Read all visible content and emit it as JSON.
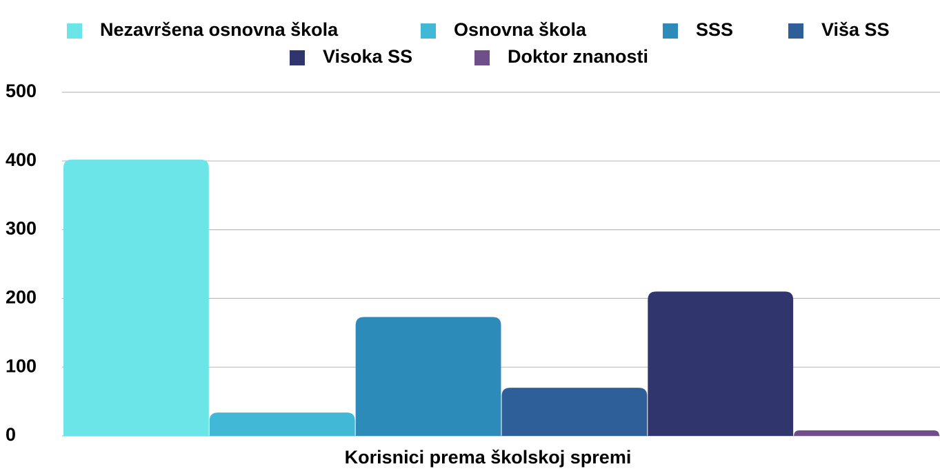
{
  "chart_data": {
    "type": "bar",
    "categories": [
      "Korisnici prema školskoj spremi"
    ],
    "series": [
      {
        "name": "Nezavršena osnovna škola",
        "color": "#6ce5e8",
        "values": [
          402
        ]
      },
      {
        "name": "Osnovna škola",
        "color": "#41b8d5",
        "values": [
          34
        ]
      },
      {
        "name": "SSS",
        "color": "#2d8bba",
        "values": [
          173
        ]
      },
      {
        "name": "Viša SS",
        "color": "#2f5f98",
        "values": [
          70
        ]
      },
      {
        "name": "Visoka SS",
        "color": "#31356e",
        "values": [
          210
        ]
      },
      {
        "name": "Doktor znanosti",
        "color": "#6f4f8a",
        "values": [
          8
        ]
      }
    ],
    "ylim": [
      0,
      500
    ],
    "yticks": [
      0,
      100,
      200,
      300,
      400,
      500
    ],
    "grid": true
  }
}
